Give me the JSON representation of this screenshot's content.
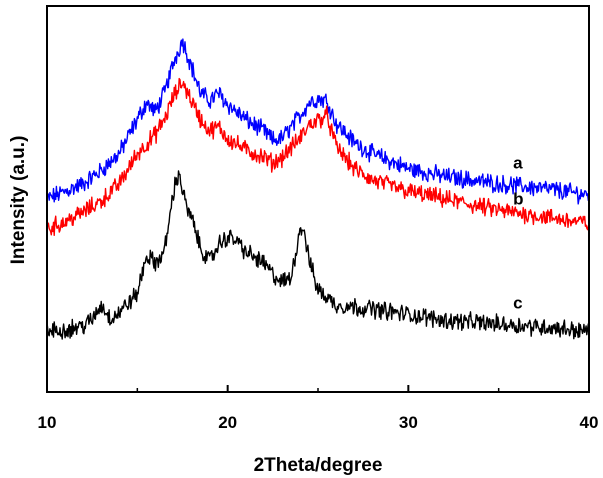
{
  "chart_data": {
    "type": "line",
    "title": "",
    "xlabel": "2Theta/degree",
    "ylabel": "Intensity (a.u.)",
    "xlim": [
      10,
      40
    ],
    "x_ticks": [
      "10",
      "20",
      "30",
      "40"
    ],
    "y_ticks_shown": false,
    "grid": false,
    "legend": "none",
    "series": [
      {
        "name": "a",
        "color": "#0000ff",
        "points": [
          [
            10,
            0.8
          ],
          [
            11,
            1.0
          ],
          [
            12,
            1.2
          ],
          [
            13,
            1.55
          ],
          [
            14,
            2.0
          ],
          [
            15,
            2.9
          ],
          [
            15.5,
            3.35
          ],
          [
            16,
            3.1
          ],
          [
            16.5,
            3.6
          ],
          [
            17,
            4.4
          ],
          [
            17.5,
            5.0
          ],
          [
            18,
            4.3
          ],
          [
            18.5,
            3.6
          ],
          [
            19,
            3.4
          ],
          [
            19.5,
            3.6
          ],
          [
            20,
            3.3
          ],
          [
            21,
            2.9
          ],
          [
            22,
            2.6
          ],
          [
            22.5,
            2.35
          ],
          [
            23,
            2.4
          ],
          [
            24,
            3.0
          ],
          [
            24.5,
            3.35
          ],
          [
            25,
            3.45
          ],
          [
            25.5,
            3.4
          ],
          [
            26,
            2.8
          ],
          [
            27,
            2.3
          ],
          [
            28,
            2.0
          ],
          [
            29,
            1.8
          ],
          [
            30,
            1.6
          ],
          [
            32,
            1.4
          ],
          [
            35,
            1.2
          ],
          [
            38,
            1.05
          ],
          [
            40,
            0.9
          ]
        ]
      },
      {
        "name": "b",
        "color": "#ff0000",
        "points": [
          [
            10,
            0.0
          ],
          [
            11,
            0.2
          ],
          [
            12,
            0.45
          ],
          [
            13,
            0.75
          ],
          [
            14,
            1.2
          ],
          [
            15,
            2.0
          ],
          [
            16,
            2.5
          ],
          [
            16.5,
            2.9
          ],
          [
            17,
            3.5
          ],
          [
            17.5,
            3.9
          ],
          [
            18,
            3.4
          ],
          [
            18.5,
            2.9
          ],
          [
            19,
            2.6
          ],
          [
            19.5,
            2.7
          ],
          [
            20,
            2.4
          ],
          [
            21,
            2.1
          ],
          [
            22,
            1.9
          ],
          [
            22.5,
            1.75
          ],
          [
            23,
            1.9
          ],
          [
            24,
            2.4
          ],
          [
            24.5,
            2.75
          ],
          [
            25,
            2.9
          ],
          [
            25.5,
            3.0
          ],
          [
            26,
            2.2
          ],
          [
            27,
            1.6
          ],
          [
            28,
            1.3
          ],
          [
            29,
            1.15
          ],
          [
            30,
            1.0
          ],
          [
            32,
            0.8
          ],
          [
            35,
            0.5
          ],
          [
            38,
            0.3
          ],
          [
            40,
            0.15
          ]
        ]
      },
      {
        "name": "c",
        "color": "#000000",
        "points": [
          [
            10,
            -2.7
          ],
          [
            11,
            -2.65
          ],
          [
            12,
            -2.55
          ],
          [
            12.5,
            -2.4
          ],
          [
            13,
            -2.0
          ],
          [
            13.5,
            -2.35
          ],
          [
            14,
            -2.2
          ],
          [
            15,
            -1.7
          ],
          [
            15.5,
            -0.7
          ],
          [
            16,
            -0.9
          ],
          [
            16.5,
            -0.6
          ],
          [
            17,
            1.0
          ],
          [
            17.3,
            1.5
          ],
          [
            17.7,
            0.6
          ],
          [
            18,
            0.3
          ],
          [
            18.5,
            -0.5
          ],
          [
            19,
            -0.85
          ],
          [
            19.5,
            -0.4
          ],
          [
            20,
            -0.2
          ],
          [
            20.5,
            -0.3
          ],
          [
            21,
            -0.6
          ],
          [
            22,
            -0.9
          ],
          [
            22.5,
            -1.2
          ],
          [
            23,
            -1.4
          ],
          [
            23.5,
            -1.3
          ],
          [
            24,
            0.0
          ],
          [
            24.2,
            0.05
          ],
          [
            24.5,
            -0.8
          ],
          [
            25,
            -1.6
          ],
          [
            26,
            -2.0
          ],
          [
            28,
            -2.1
          ],
          [
            30,
            -2.25
          ],
          [
            32,
            -2.4
          ],
          [
            35,
            -2.5
          ],
          [
            38,
            -2.6
          ],
          [
            40,
            -2.7
          ]
        ]
      }
    ],
    "curve_labels": [
      {
        "text": "a",
        "x": 35.8,
        "y": 1.6
      },
      {
        "text": "b",
        "x": 35.8,
        "y": 0.65
      },
      {
        "text": "c",
        "x": 35.8,
        "y": -2.1
      }
    ]
  }
}
